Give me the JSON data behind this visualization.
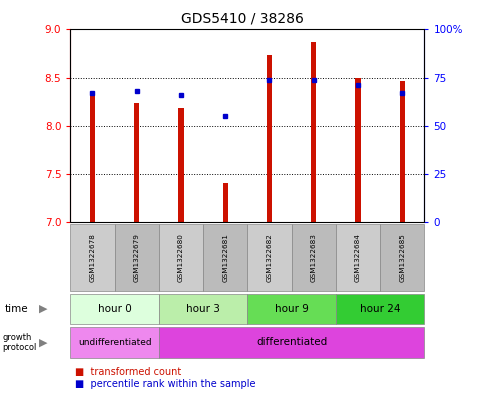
{
  "title": "GDS5410 / 38286",
  "samples": [
    "GSM1322678",
    "GSM1322679",
    "GSM1322680",
    "GSM1322681",
    "GSM1322682",
    "GSM1322683",
    "GSM1322684",
    "GSM1322685"
  ],
  "transformed_counts": [
    8.32,
    8.24,
    8.18,
    7.41,
    8.73,
    8.87,
    8.5,
    8.46
  ],
  "percentile_ranks": [
    67,
    68,
    66,
    55,
    74,
    74,
    71,
    67
  ],
  "y_min": 7.0,
  "y_max": 9.0,
  "y_ticks": [
    7.0,
    7.5,
    8.0,
    8.5,
    9.0
  ],
  "y2_ticks": [
    0,
    25,
    50,
    75,
    100
  ],
  "bar_color": "#cc1100",
  "dot_color": "#0000cc",
  "time_colors": [
    "#ddffdd",
    "#bbeeaa",
    "#66dd55",
    "#33cc33"
  ],
  "growth_colors": [
    "#ee88ee",
    "#dd44dd"
  ],
  "sample_box_color": "#cccccc",
  "time_groups": [
    {
      "label": "hour 0",
      "samples": [
        0,
        1
      ]
    },
    {
      "label": "hour 3",
      "samples": [
        2,
        3
      ]
    },
    {
      "label": "hour 9",
      "samples": [
        4,
        5
      ]
    },
    {
      "label": "hour 24",
      "samples": [
        6,
        7
      ]
    }
  ],
  "growth_groups": [
    {
      "label": "undifferentiated",
      "samples": [
        0,
        1
      ]
    },
    {
      "label": "differentiated",
      "samples": [
        2,
        3,
        4,
        5,
        6,
        7
      ]
    }
  ]
}
